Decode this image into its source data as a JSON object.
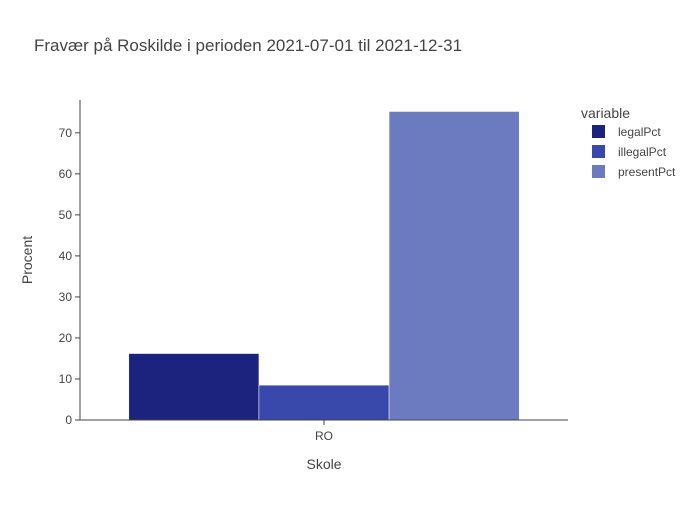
{
  "chart_data": {
    "type": "bar",
    "title": "Fravær på Roskilde i perioden 2021-07-01 til 2021-12-31",
    "xlabel": "Skole",
    "ylabel": "Procent",
    "categories": [
      "RO"
    ],
    "ylim": [
      0,
      78
    ],
    "yticks": [
      0,
      10,
      20,
      30,
      40,
      50,
      60,
      70
    ],
    "grid": false,
    "barmode": "group",
    "legend": {
      "title": "variable",
      "position": "top-right"
    },
    "series": [
      {
        "name": "legalPct",
        "values": [
          16.2
        ],
        "color": "#1b237f"
      },
      {
        "name": "illegalPct",
        "values": [
          8.5
        ],
        "color": "#3949ab"
      },
      {
        "name": "presentPct",
        "values": [
          75.2
        ],
        "color": "#6c7bc0"
      }
    ]
  }
}
